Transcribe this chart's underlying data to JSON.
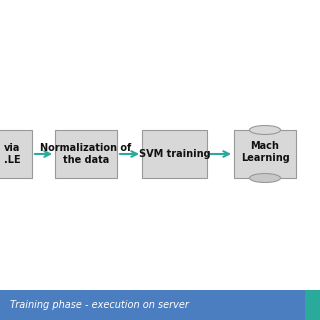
{
  "bg_color": "#ffffff",
  "box_color": "#d8d8d8",
  "box_edge_color": "#999999",
  "arrow_color": "#2aaa9a",
  "box1_label": "via\n.LE",
  "box2_label": "Normalization of\nthe data",
  "box3_label": "SVM training",
  "box4_label": "Mach\nLearning",
  "banner_color": "#4a7ec0",
  "banner_text": "Training phase - execution on server",
  "banner_text_color": "#ffffff",
  "teal_stripe_color": "#2aaa9a",
  "fig_width": 3.2,
  "fig_height": 3.2,
  "dpi": 100
}
